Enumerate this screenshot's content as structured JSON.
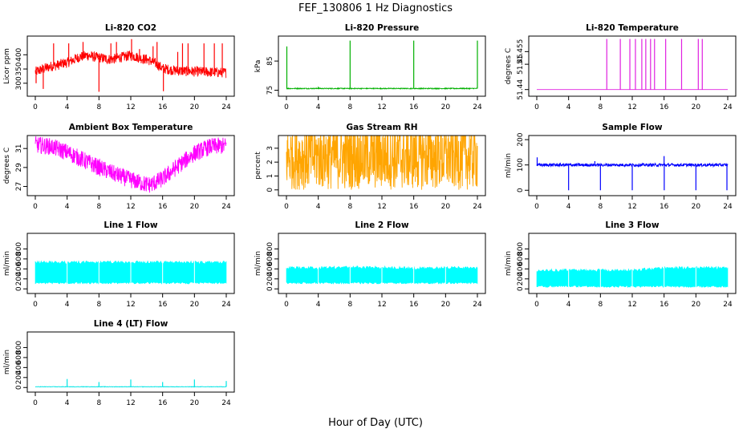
{
  "figure": {
    "title": "FEF_130806  1 Hz Diagnostics",
    "xlabel": "Hour of Day (UTC)"
  },
  "chart_data": [
    {
      "type": "line",
      "title": "Li-820 CO2",
      "ylabel": "Licor ppm",
      "color": "#ff0000",
      "xlim": [
        0,
        24
      ],
      "ylim": [
        260,
        460
      ],
      "xticks": [
        0,
        4,
        8,
        12,
        16,
        20,
        24
      ],
      "yticks": [
        300,
        350,
        400
      ],
      "series": [
        {
          "x": [
            0,
            0.5,
            1,
            1.5,
            2,
            2.5,
            3,
            3.5,
            4,
            4.5,
            5,
            5.5,
            6,
            6.5,
            7,
            7.5,
            8,
            8.5,
            9,
            9.5,
            10,
            10.5,
            11,
            11.5,
            12,
            12.5,
            13,
            13.5,
            14,
            14.5,
            15,
            15.5,
            16,
            16.5,
            17,
            17.5,
            18,
            18.5,
            19,
            19.5,
            20,
            20.5,
            21,
            21.5,
            22,
            22.5,
            23,
            23.5,
            24
          ],
          "values": [
            340,
            345,
            350,
            355,
            360,
            362,
            365,
            370,
            372,
            378,
            385,
            392,
            395,
            398,
            395,
            392,
            390,
            388,
            385,
            384,
            386,
            390,
            392,
            395,
            398,
            394,
            390,
            386,
            384,
            378,
            372,
            362,
            352,
            350,
            347,
            345,
            344,
            343,
            342,
            342,
            341,
            341,
            340,
            340,
            339,
            339,
            338,
            338,
            337
          ]
        }
      ],
      "noise": 18,
      "spikes": [
        [
          0.1,
          300
        ],
        [
          1.0,
          280
        ],
        [
          2.3,
          440
        ],
        [
          4.2,
          440
        ],
        [
          6.0,
          445
        ],
        [
          8.0,
          270
        ],
        [
          9.5,
          440
        ],
        [
          10.2,
          445
        ],
        [
          12.1,
          455
        ],
        [
          13.1,
          420
        ],
        [
          14.8,
          430
        ],
        [
          15.3,
          445
        ],
        [
          16.1,
          272
        ],
        [
          17.9,
          410
        ],
        [
          18.5,
          440
        ],
        [
          19.2,
          440
        ],
        [
          21.2,
          440
        ],
        [
          22.5,
          440
        ],
        [
          23.5,
          440
        ]
      ]
    },
    {
      "type": "line",
      "title": "Li-820 Pressure",
      "ylabel": "kPa",
      "color": "#00b000",
      "xlim": [
        0,
        24
      ],
      "ylim": [
        73.5,
        93
      ],
      "xticks": [
        0,
        4,
        8,
        12,
        16,
        20,
        24
      ],
      "yticks": [
        75,
        85
      ],
      "series": [
        {
          "x": [
            0,
            24
          ],
          "values": [
            75.6,
            75.6
          ]
        }
      ],
      "noise": 0.15,
      "spikes": [
        [
          0.05,
          90
        ],
        [
          4.0,
          76.2
        ],
        [
          8.0,
          92
        ],
        [
          16.0,
          92
        ],
        [
          24.0,
          92
        ]
      ]
    },
    {
      "type": "line",
      "title": "Li-820 Temperature",
      "ylabel": "degrees C",
      "color": "#e020e0",
      "xlim": [
        0,
        24
      ],
      "ylim": [
        51.438,
        51.4605
      ],
      "xticks": [
        0,
        4,
        8,
        12,
        16,
        20,
        24
      ],
      "yticks": [
        51.44,
        51.45,
        51.455
      ],
      "series": [
        {
          "x": [
            0,
            24
          ],
          "values": [
            51.44,
            51.44
          ]
        }
      ],
      "noise": 0,
      "spikes": [
        [
          8.8,
          51.46
        ],
        [
          10.5,
          51.46
        ],
        [
          11.7,
          51.46
        ],
        [
          12.4,
          51.46
        ],
        [
          13.2,
          51.46
        ],
        [
          13.7,
          51.46
        ],
        [
          14.3,
          51.46
        ],
        [
          14.8,
          51.46
        ],
        [
          16.2,
          51.46
        ],
        [
          18.2,
          51.46
        ],
        [
          20.3,
          51.46
        ],
        [
          20.8,
          51.46
        ]
      ]
    },
    {
      "type": "line",
      "title": "Ambient Box Temperature",
      "ylabel": "degrees C",
      "color": "#ff00ff",
      "xlim": [
        0,
        24
      ],
      "ylim": [
        26.2,
        32.2
      ],
      "xticks": [
        0,
        4,
        8,
        12,
        16,
        20,
        24
      ],
      "yticks": [
        27,
        29,
        31
      ],
      "series": [
        {
          "x": [
            0,
            2,
            4,
            6,
            8,
            10,
            12,
            14,
            14.5,
            16,
            18,
            20,
            22,
            24
          ],
          "values": [
            31.4,
            31.2,
            30.6,
            29.8,
            29.0,
            28.3,
            27.7,
            27.2,
            27.2,
            27.8,
            29.2,
            30.5,
            31.2,
            31.3
          ]
        }
      ],
      "noise": 0.9
    },
    {
      "type": "line",
      "title": "Gas Stream RH",
      "ylabel": "percent",
      "color": "#ffa500",
      "xlim": [
        0,
        24
      ],
      "ylim": [
        -0.3,
        3.8
      ],
      "xticks": [
        0,
        4,
        8,
        12,
        16,
        20,
        24
      ],
      "yticks": [
        0,
        1,
        2,
        3
      ],
      "series": [
        {
          "x": [
            0,
            24
          ],
          "values": [
            2.4,
            2.4
          ]
        }
      ],
      "noise": 2.4
    },
    {
      "type": "line",
      "title": "Sample Flow",
      "ylabel": "ml/min",
      "color": "#0000ff",
      "xlim": [
        0,
        24
      ],
      "ylim": [
        -15,
        210
      ],
      "xticks": [
        0,
        4,
        8,
        12,
        16,
        20,
        24
      ],
      "yticks": [
        0,
        100,
        200
      ],
      "series": [
        {
          "x": [
            0,
            24
          ],
          "values": [
            100,
            100
          ]
        }
      ],
      "noise": 6,
      "spikes": [
        [
          0.05,
          130
        ],
        [
          4.0,
          0
        ],
        [
          7.3,
          115
        ],
        [
          8.0,
          0
        ],
        [
          12.0,
          0
        ],
        [
          16.0,
          135
        ],
        [
          16.02,
          0
        ],
        [
          20.0,
          0
        ],
        [
          23.9,
          0
        ]
      ]
    },
    {
      "type": "area",
      "title": "Line 1 Flow",
      "ylabel": "ml/min",
      "color": "#00ffff",
      "xlim": [
        0,
        24
      ],
      "ylim": [
        -60,
        1080
      ],
      "xticks": [
        0,
        4,
        8,
        12,
        16,
        20,
        24
      ],
      "yticks": [
        0,
        200,
        400,
        600,
        800
      ],
      "band": [
        [
          0,
          100,
          560
        ],
        [
          4,
          100,
          560
        ],
        [
          8,
          100,
          560
        ],
        [
          12,
          100,
          560
        ],
        [
          16,
          100,
          560
        ],
        [
          20,
          100,
          560
        ],
        [
          24,
          100,
          560
        ]
      ],
      "gaps": [
        4,
        8,
        12,
        16,
        20
      ]
    },
    {
      "type": "area",
      "title": "Line 2 Flow",
      "ylabel": "ml/min",
      "color": "#00ffff",
      "xlim": [
        0,
        24
      ],
      "ylim": [
        -60,
        1080
      ],
      "xticks": [
        0,
        4,
        8,
        12,
        16,
        20,
        24
      ],
      "yticks": [
        0,
        200,
        400,
        600,
        800
      ],
      "band": [
        [
          0,
          100,
          450
        ],
        [
          4,
          100,
          450
        ],
        [
          8,
          100,
          460
        ],
        [
          12,
          100,
          460
        ],
        [
          16,
          100,
          440
        ],
        [
          20,
          100,
          450
        ],
        [
          24,
          100,
          450
        ]
      ],
      "gaps": [
        4,
        8,
        12,
        16,
        20
      ]
    },
    {
      "type": "area",
      "title": "Line 3 Flow",
      "ylabel": "ml/min",
      "color": "#00ffff",
      "xlim": [
        0,
        24
      ],
      "ylim": [
        -60,
        1080
      ],
      "xticks": [
        0,
        4,
        8,
        12,
        16,
        20,
        24
      ],
      "yticks": [
        0,
        200,
        400,
        600,
        800
      ],
      "band": [
        [
          0,
          30,
          400
        ],
        [
          4,
          30,
          400
        ],
        [
          8,
          30,
          400
        ],
        [
          12,
          30,
          400
        ],
        [
          16,
          30,
          450
        ],
        [
          20,
          30,
          450
        ],
        [
          24,
          30,
          450
        ]
      ],
      "gaps": [
        4,
        8,
        12,
        16,
        20
      ]
    },
    {
      "type": "line",
      "title": "Line 4 (LT) Flow",
      "ylabel": "ml/min",
      "color": "#00e5e5",
      "xlim": [
        0,
        24
      ],
      "ylim": [
        -60,
        1080
      ],
      "xticks": [
        0,
        4,
        8,
        12,
        16,
        20,
        24
      ],
      "yticks": [
        0,
        200,
        400,
        600,
        800
      ],
      "series": [
        {
          "x": [
            0,
            24
          ],
          "values": [
            15,
            15
          ]
        }
      ],
      "noise": 4,
      "spikes": [
        [
          4.0,
          170
        ],
        [
          8.0,
          110
        ],
        [
          12.0,
          160
        ],
        [
          16.0,
          110
        ],
        [
          20.0,
          160
        ],
        [
          24.0,
          130
        ]
      ]
    }
  ]
}
